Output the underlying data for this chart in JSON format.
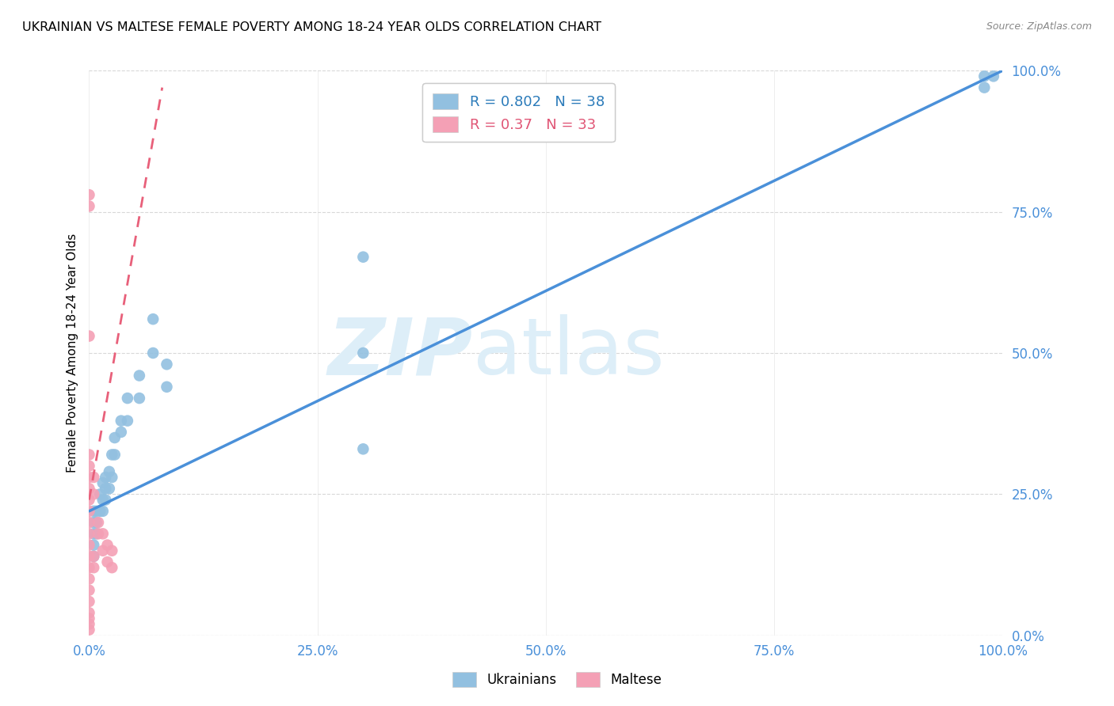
{
  "title": "UKRAINIAN VS MALTESE FEMALE POVERTY AMONG 18-24 YEAR OLDS CORRELATION CHART",
  "source": "Source: ZipAtlas.com",
  "ylabel": "Female Poverty Among 18-24 Year Olds",
  "xlim": [
    0.0,
    1.0
  ],
  "ylim": [
    0.0,
    1.0
  ],
  "ticks": [
    0.0,
    0.25,
    0.5,
    0.75,
    1.0
  ],
  "ticklabels": [
    "0.0%",
    "25.0%",
    "50.0%",
    "75.0%",
    "100.0%"
  ],
  "ukrainian_color": "#92c0e0",
  "maltese_color": "#f4a0b5",
  "line_blue_color": "#4a90d9",
  "line_pink_color": "#e8607a",
  "legend_blue_color": "#2b7bba",
  "legend_pink_color": "#e05575",
  "tick_color": "#4a90d9",
  "R_ukrainian": 0.802,
  "N_ukrainian": 38,
  "R_maltese": 0.37,
  "N_maltese": 33,
  "watermark_zip": "ZIP",
  "watermark_atlas": "atlas",
  "watermark_color": "#ddeef8",
  "background_color": "#ffffff",
  "blue_line_x": [
    0.0,
    1.0
  ],
  "blue_line_y": [
    0.22,
    1.0
  ],
  "pink_line_x": [
    0.0,
    0.08
  ],
  "pink_line_y": [
    0.24,
    0.97
  ],
  "ukrainians_x": [
    0.005,
    0.005,
    0.005,
    0.005,
    0.005,
    0.008,
    0.008,
    0.008,
    0.012,
    0.012,
    0.015,
    0.015,
    0.015,
    0.018,
    0.018,
    0.018,
    0.022,
    0.022,
    0.025,
    0.025,
    0.028,
    0.028,
    0.035,
    0.035,
    0.042,
    0.042,
    0.055,
    0.055,
    0.07,
    0.07,
    0.085,
    0.085,
    0.3,
    0.3,
    0.3,
    0.98,
    0.98,
    0.99
  ],
  "ukrainians_y": [
    0.22,
    0.2,
    0.18,
    0.16,
    0.14,
    0.22,
    0.2,
    0.18,
    0.25,
    0.22,
    0.27,
    0.24,
    0.22,
    0.28,
    0.26,
    0.24,
    0.29,
    0.26,
    0.32,
    0.28,
    0.35,
    0.32,
    0.38,
    0.36,
    0.42,
    0.38,
    0.46,
    0.42,
    0.56,
    0.5,
    0.48,
    0.44,
    0.67,
    0.5,
    0.33,
    0.99,
    0.97,
    0.99
  ],
  "maltese_x": [
    0.0,
    0.0,
    0.0,
    0.0,
    0.0,
    0.0,
    0.0,
    0.0,
    0.0,
    0.0,
    0.0,
    0.0,
    0.0,
    0.0,
    0.0,
    0.0,
    0.0,
    0.005,
    0.005,
    0.005,
    0.005,
    0.01,
    0.01,
    0.015,
    0.015,
    0.02,
    0.02,
    0.025,
    0.025,
    0.0,
    0.0,
    0.0,
    0.0
  ],
  "maltese_y": [
    0.78,
    0.76,
    0.26,
    0.24,
    0.22,
    0.2,
    0.18,
    0.16,
    0.14,
    0.12,
    0.1,
    0.08,
    0.06,
    0.04,
    0.02,
    0.01,
    0.03,
    0.28,
    0.25,
    0.14,
    0.12,
    0.2,
    0.18,
    0.18,
    0.15,
    0.16,
    0.13,
    0.15,
    0.12,
    0.53,
    0.32,
    0.3,
    0.28
  ]
}
